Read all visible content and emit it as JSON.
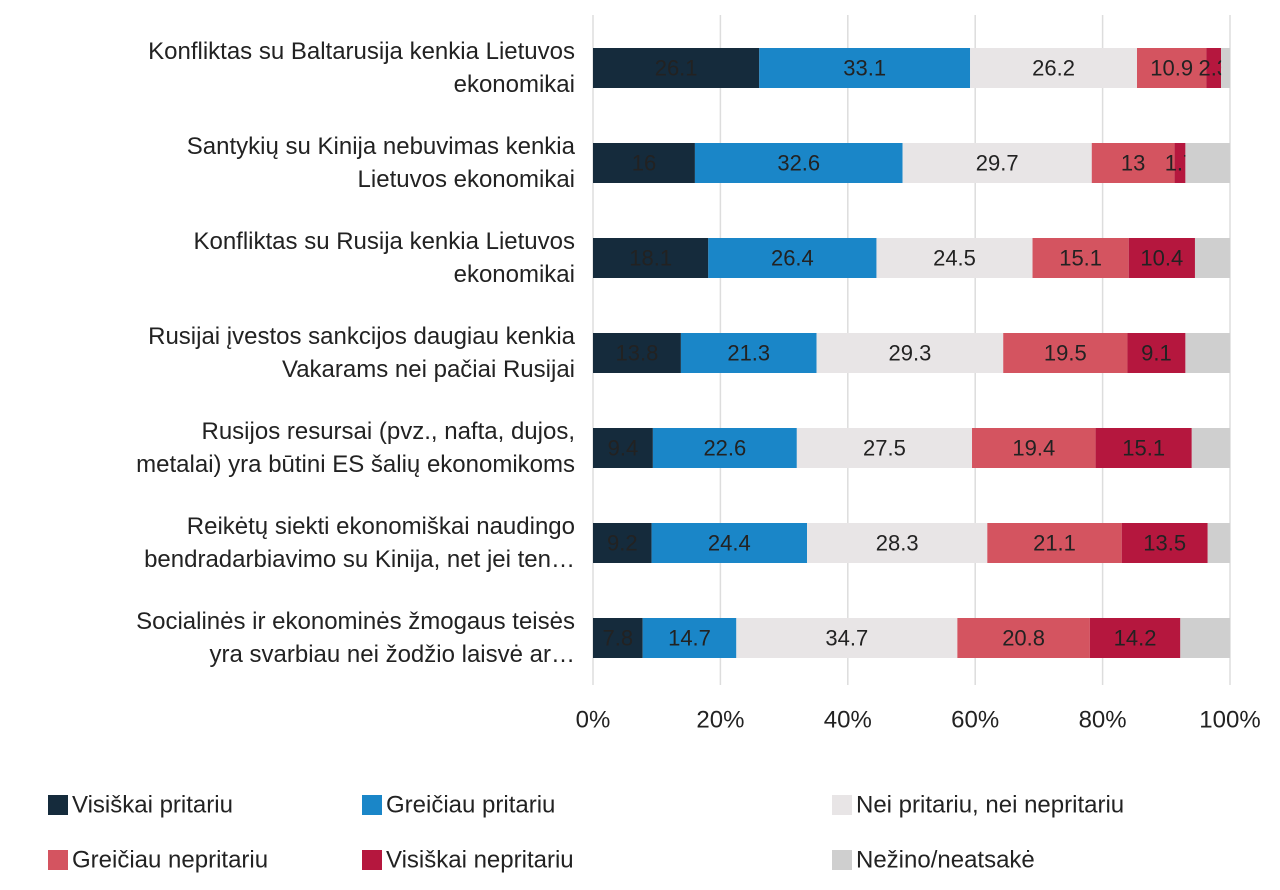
{
  "chart_data": {
    "type": "stacked_barh",
    "categories": [
      "Konfliktas su Baltarusija kenkia Lietuvos\nekonomikai",
      "Santykių su Kinija nebuvimas kenkia\nLietuvos ekonomikai",
      "Konfliktas su Rusija kenkia Lietuvos\nekonomikai",
      "Rusijai įvestos sankcijos daugiau kenkia\nVakarams nei pačiai Rusijai",
      "Rusijos resursai (pvz., nafta, dujos,\nmetalai) yra būtini ES šalių ekonomikoms",
      "Reikėtų siekti ekonomiškai naudingo\nbendradarbiavimo su Kinija, net jei ten…",
      "Socialinės ir ekonominės žmogaus teisės\nyra svarbiau nei žodžio laisvė ar…"
    ],
    "series": [
      {
        "name": "Visiškai pritariu",
        "color": "#152b3c",
        "label_color": "#ffffff",
        "data_labels": true,
        "values": [
          26.1,
          16,
          18.1,
          13.8,
          9.4,
          9.2,
          7.8
        ]
      },
      {
        "name": "Greičiau pritariu",
        "color": "#1a86c8",
        "label_color": "#ffffff",
        "data_labels": true,
        "values": [
          33.1,
          32.6,
          26.4,
          21.3,
          22.6,
          24.4,
          14.7
        ]
      },
      {
        "name": "Nei pritariu, nei nepritariu",
        "color": "#e8e5e6",
        "label_color": "#222222",
        "data_labels": true,
        "values": [
          26.2,
          29.7,
          24.5,
          29.3,
          27.5,
          28.3,
          34.7
        ]
      },
      {
        "name": "Greičiau nepritariu",
        "color": "#d45460",
        "label_color": "#ffffff",
        "data_labels": true,
        "values": [
          10.9,
          13,
          15.1,
          19.5,
          19.4,
          21.1,
          20.8
        ]
      },
      {
        "name": "Visiškai nepritariu",
        "color": "#b5173e",
        "label_color": "#ffffff",
        "data_labels": true,
        "values": [
          2.3,
          1.7,
          10.4,
          9.1,
          15.1,
          13.5,
          14.2
        ]
      },
      {
        "name": "Nežino/neatsakė",
        "color": "#cfcfcf",
        "label_color": "#222222",
        "data_labels": false,
        "values": [
          1.4,
          7.0,
          5.5,
          7.0,
          6.0,
          3.5,
          7.8
        ]
      }
    ],
    "xlim": [
      0,
      100
    ],
    "xticks": [
      {
        "value": 0,
        "label": "0%"
      },
      {
        "value": 20,
        "label": "20%"
      },
      {
        "value": 40,
        "label": "40%"
      },
      {
        "value": 60,
        "label": "60%"
      },
      {
        "value": 80,
        "label": "80%"
      },
      {
        "value": 100,
        "label": "100%"
      }
    ],
    "grid": true
  }
}
